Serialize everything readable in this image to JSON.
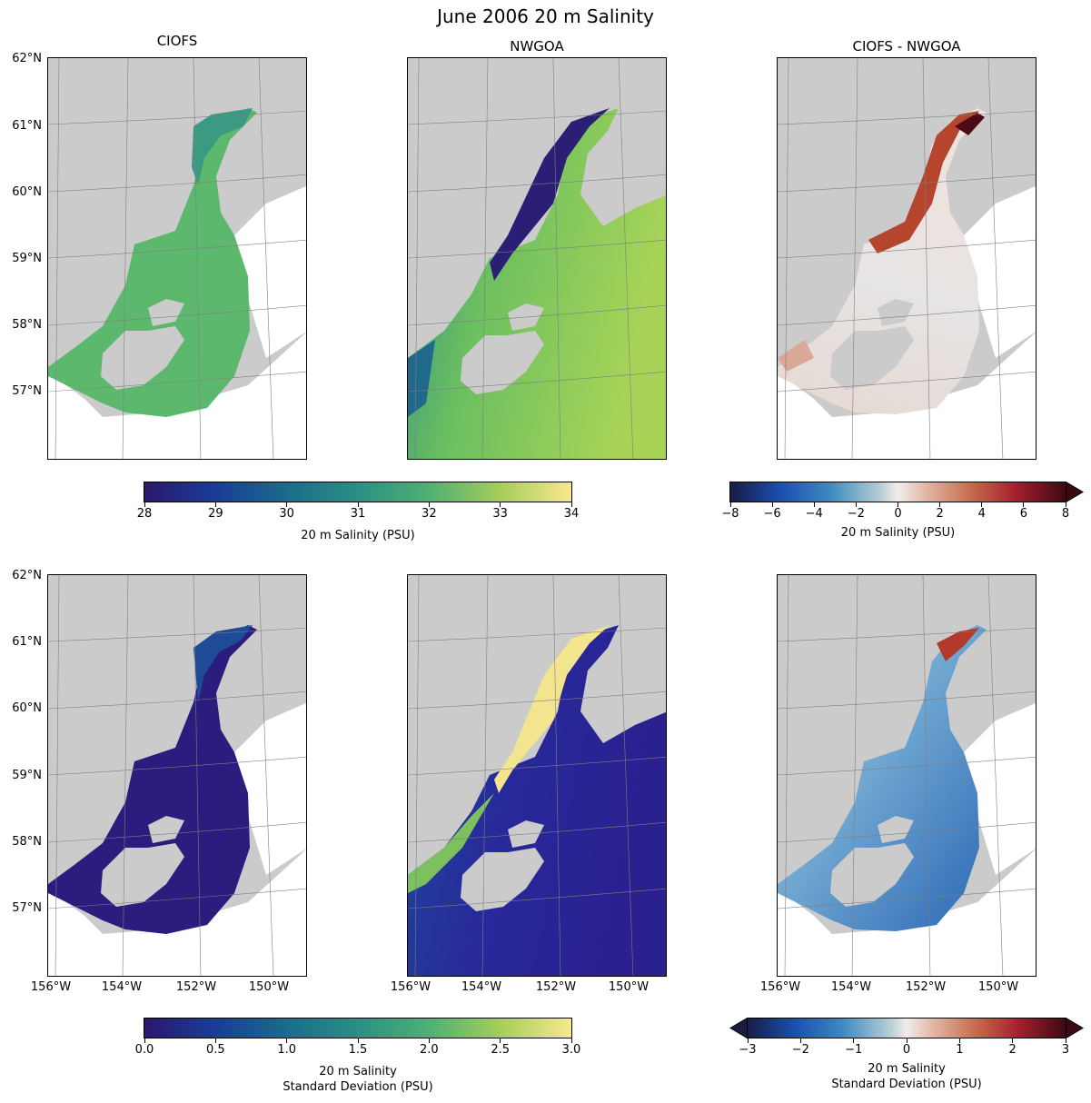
{
  "figure": {
    "title": "June 2006 20 m Salinity",
    "panel_titles": [
      "CIOFS",
      "NWGOA",
      "CIOFS - NWGOA"
    ],
    "lat_labels": [
      "62°N",
      "61°N",
      "60°N",
      "59°N",
      "58°N",
      "57°N"
    ],
    "lon_labels": [
      "156°W",
      "154°W",
      "152°W",
      "150°W"
    ],
    "colors": {
      "land": "#cbcbcb",
      "water_nodata": "#ffffff",
      "grid": "#7f7f7f"
    }
  },
  "colorbars": {
    "mean_salinity": {
      "ticks": [
        "28",
        "29",
        "30",
        "31",
        "32",
        "33",
        "34"
      ],
      "label": "20 m Salinity (PSU)",
      "range": [
        28,
        34
      ],
      "colormap": "haline"
    },
    "mean_difference": {
      "ticks": [
        "−8",
        "−6",
        "−4",
        "−2",
        "0",
        "2",
        "4",
        "6",
        "8"
      ],
      "label": "20 m Salinity (PSU)",
      "range": [
        -8,
        8
      ],
      "colormap": "balance",
      "extend": "max"
    },
    "std_salinity": {
      "ticks": [
        "0.0",
        "0.5",
        "1.0",
        "1.5",
        "2.0",
        "2.5",
        "3.0"
      ],
      "label_line1": "20 m Salinity",
      "label_line2": "Standard Deviation (PSU)",
      "range": [
        0,
        3
      ],
      "colormap": "haline"
    },
    "std_difference": {
      "ticks": [
        "−3",
        "−2",
        "−1",
        "0",
        "1",
        "2",
        "3"
      ],
      "label_line1": "20 m Salinity",
      "label_line2": "Standard Deviation (PSU)",
      "range": [
        -3,
        3
      ],
      "colormap": "balance",
      "extend": "both"
    }
  }
}
